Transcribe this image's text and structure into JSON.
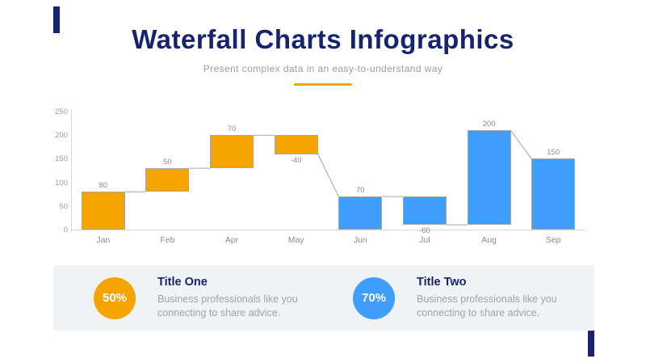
{
  "header": {
    "title": "Waterfall Charts Infographics",
    "subtitle": "Present complex data in an easy-to-understand way"
  },
  "colors": {
    "navy": "#16246d",
    "orange": "#f5a402",
    "blue": "#3f9efb",
    "panel_bg": "#eff3f6",
    "axis_gray": "#d9d9d9",
    "connector_gray": "#a6a6a6",
    "label_gray": "#8c8c8c"
  },
  "chart_data": {
    "type": "bar",
    "subtype": "waterfall",
    "title": "",
    "xlabel": "",
    "ylabel": "",
    "ylim": [
      0,
      250
    ],
    "y_ticks": [
      0,
      50,
      100,
      150,
      200,
      250
    ],
    "grid": false,
    "legend": false,
    "categories": [
      "Jan",
      "Feb",
      "Apr",
      "May",
      "Jun",
      "Jul",
      "Aug",
      "Sep"
    ],
    "deltas": [
      80,
      50,
      70,
      -40,
      70,
      -60,
      200,
      150
    ],
    "bars": [
      {
        "month": "Jan",
        "start": 0,
        "end": 80,
        "color": "orange",
        "label": "80",
        "label_side": "top"
      },
      {
        "month": "Feb",
        "start": 80,
        "end": 130,
        "color": "orange",
        "label": "50",
        "label_side": "top"
      },
      {
        "month": "Apr",
        "start": 130,
        "end": 200,
        "color": "orange",
        "label": "70",
        "label_side": "top"
      },
      {
        "month": "May",
        "start": 200,
        "end": 160,
        "color": "orange",
        "label": "-40",
        "label_side": "bottom"
      },
      {
        "month": "Jun",
        "start": 0,
        "end": 70,
        "color": "blue",
        "label": "70",
        "label_side": "top"
      },
      {
        "month": "Jul",
        "start": 70,
        "end": 10,
        "color": "blue",
        "label": "-60",
        "label_side": "bottom"
      },
      {
        "month": "Aug",
        "start": 10,
        "end": 210,
        "color": "blue",
        "label": "200",
        "label_side": "top"
      },
      {
        "month": "Sep",
        "start": 0,
        "end": 150,
        "color": "blue",
        "label": "150",
        "label_side": "top"
      }
    ],
    "connectors": [
      {
        "from": 0,
        "to": 1,
        "fromLevel": 80,
        "toLevel": 80
      },
      {
        "from": 1,
        "to": 2,
        "fromLevel": 130,
        "toLevel": 130
      },
      {
        "from": 2,
        "to": 3,
        "fromLevel": 200,
        "toLevel": 200
      },
      {
        "from": 3,
        "to": 4,
        "fromLevel": 160,
        "toLevel": 70
      },
      {
        "from": 4,
        "to": 5,
        "fromLevel": 70,
        "toLevel": 70
      },
      {
        "from": 5,
        "to": 6,
        "fromLevel": 10,
        "toLevel": 10
      },
      {
        "from": 6,
        "to": 7,
        "fromLevel": 210,
        "toLevel": 150
      }
    ]
  },
  "cards": [
    {
      "percent": "50%",
      "title": "Title One",
      "body": "Business professionals like you connecting to share advice.",
      "color": "orange"
    },
    {
      "percent": "70%",
      "title": "Title Two",
      "body": "Business professionals like you connecting to share advice.",
      "color": "blue"
    }
  ]
}
